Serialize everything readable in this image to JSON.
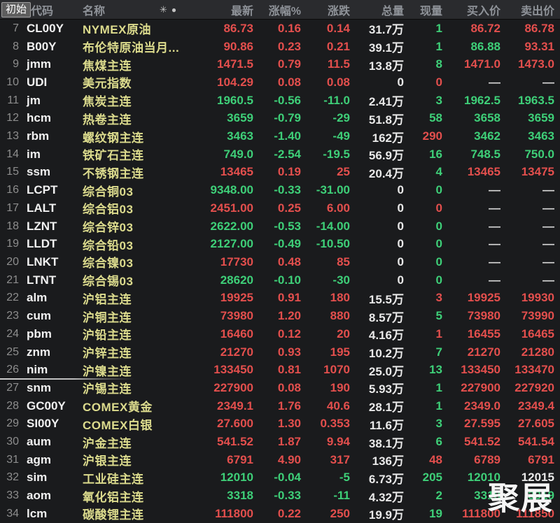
{
  "header": {
    "initial_label": "初始",
    "columns": {
      "code": "代码",
      "name": "名称",
      "last": "最新",
      "pct": "涨幅%",
      "chg": "涨跌",
      "vol": "总量",
      "cur": "现量",
      "bid": "买入价",
      "ask": "卖出价"
    },
    "icons": {
      "asterisk": "✳",
      "dot": "●"
    }
  },
  "colors": {
    "up": "#e34f4d",
    "down": "#3ecf78",
    "neutral": "#e9e9e9",
    "dash": "#d9d9d9",
    "name": "#dcdb8d"
  },
  "watermark": "聚展",
  "rows": [
    {
      "n": "7",
      "code": "CL00Y",
      "name": "NYMEX原油",
      "last": "86.73",
      "pct": "0.16",
      "chg": "0.14",
      "vol": "31.7万",
      "cur": "1",
      "bid": "86.72",
      "ask": "86.78",
      "t": "r",
      "cc": "g",
      "bc": "r",
      "ac": "r"
    },
    {
      "n": "8",
      "code": "B00Y",
      "name": "布伦特原油当月...",
      "last": "90.86",
      "pct": "0.23",
      "chg": "0.21",
      "vol": "39.1万",
      "cur": "1",
      "bid": "86.88",
      "ask": "93.31",
      "t": "r",
      "cc": "g",
      "bc": "g",
      "ac": "r"
    },
    {
      "n": "9",
      "code": "jmm",
      "name": "焦煤主连",
      "last": "1471.5",
      "pct": "0.79",
      "chg": "11.5",
      "vol": "13.8万",
      "cur": "8",
      "bid": "1471.0",
      "ask": "1473.0",
      "t": "r",
      "cc": "g",
      "bc": "r",
      "ac": "r"
    },
    {
      "n": "10",
      "code": "UDI",
      "name": "美元指数",
      "last": "104.29",
      "pct": "0.08",
      "chg": "0.08",
      "vol": "0",
      "cur": "0",
      "bid": "—",
      "ask": "—",
      "t": "r",
      "cc": "r",
      "bc": "d",
      "ac": "d"
    },
    {
      "n": "11",
      "code": "jm",
      "name": "焦炭主连",
      "last": "1960.5",
      "pct": "-0.56",
      "chg": "-11.0",
      "vol": "2.41万",
      "cur": "3",
      "bid": "1962.5",
      "ask": "1963.5",
      "t": "g",
      "cc": "g",
      "bc": "g",
      "ac": "g"
    },
    {
      "n": "12",
      "code": "hcm",
      "name": "热卷主连",
      "last": "3659",
      "pct": "-0.79",
      "chg": "-29",
      "vol": "51.8万",
      "cur": "58",
      "bid": "3658",
      "ask": "3659",
      "t": "g",
      "cc": "g",
      "bc": "g",
      "ac": "g"
    },
    {
      "n": "13",
      "code": "rbm",
      "name": "螺纹钢主连",
      "last": "3463",
      "pct": "-1.40",
      "chg": "-49",
      "vol": "162万",
      "cur": "290",
      "bid": "3462",
      "ask": "3463",
      "t": "g",
      "cc": "r",
      "bc": "g",
      "ac": "g"
    },
    {
      "n": "14",
      "code": "im",
      "name": "铁矿石主连",
      "last": "749.0",
      "pct": "-2.54",
      "chg": "-19.5",
      "vol": "56.9万",
      "cur": "16",
      "bid": "748.5",
      "ask": "750.0",
      "t": "g",
      "cc": "g",
      "bc": "g",
      "ac": "g"
    },
    {
      "n": "15",
      "code": "ssm",
      "name": "不锈钢主连",
      "last": "13465",
      "pct": "0.19",
      "chg": "25",
      "vol": "20.4万",
      "cur": "4",
      "bid": "13465",
      "ask": "13475",
      "t": "r",
      "cc": "g",
      "bc": "r",
      "ac": "r"
    },
    {
      "n": "16",
      "code": "LCPT",
      "name": "综合铜03",
      "last": "9348.00",
      "pct": "-0.33",
      "chg": "-31.00",
      "vol": "0",
      "cur": "0",
      "bid": "—",
      "ask": "—",
      "t": "g",
      "cc": "g",
      "bc": "d",
      "ac": "d"
    },
    {
      "n": "17",
      "code": "LALT",
      "name": "综合铝03",
      "last": "2451.00",
      "pct": "0.25",
      "chg": "6.00",
      "vol": "0",
      "cur": "0",
      "bid": "—",
      "ask": "—",
      "t": "r",
      "cc": "r",
      "bc": "d",
      "ac": "d"
    },
    {
      "n": "18",
      "code": "LZNT",
      "name": "综合锌03",
      "last": "2622.00",
      "pct": "-0.53",
      "chg": "-14.00",
      "vol": "0",
      "cur": "0",
      "bid": "—",
      "ask": "—",
      "t": "g",
      "cc": "g",
      "bc": "d",
      "ac": "d"
    },
    {
      "n": "19",
      "code": "LLDT",
      "name": "综合铅03",
      "last": "2127.00",
      "pct": "-0.49",
      "chg": "-10.50",
      "vol": "0",
      "cur": "0",
      "bid": "—",
      "ask": "—",
      "t": "g",
      "cc": "g",
      "bc": "d",
      "ac": "d"
    },
    {
      "n": "20",
      "code": "LNKT",
      "name": "综合镍03",
      "last": "17730",
      "pct": "0.48",
      "chg": "85",
      "vol": "0",
      "cur": "0",
      "bid": "—",
      "ask": "—",
      "t": "r",
      "cc": "g",
      "bc": "d",
      "ac": "d"
    },
    {
      "n": "21",
      "code": "LTNT",
      "name": "综合锡03",
      "last": "28620",
      "pct": "-0.10",
      "chg": "-30",
      "vol": "0",
      "cur": "0",
      "bid": "—",
      "ask": "—",
      "t": "g",
      "cc": "g",
      "bc": "d",
      "ac": "d"
    },
    {
      "n": "22",
      "code": "alm",
      "name": "沪铝主连",
      "last": "19925",
      "pct": "0.91",
      "chg": "180",
      "vol": "15.5万",
      "cur": "3",
      "bid": "19925",
      "ask": "19930",
      "t": "r",
      "cc": "r",
      "bc": "r",
      "ac": "r"
    },
    {
      "n": "23",
      "code": "cum",
      "name": "沪铜主连",
      "last": "73980",
      "pct": "1.20",
      "chg": "880",
      "vol": "8.57万",
      "cur": "5",
      "bid": "73980",
      "ask": "73990",
      "t": "r",
      "cc": "g",
      "bc": "r",
      "ac": "r"
    },
    {
      "n": "24",
      "code": "pbm",
      "name": "沪铅主连",
      "last": "16460",
      "pct": "0.12",
      "chg": "20",
      "vol": "4.16万",
      "cur": "1",
      "bid": "16455",
      "ask": "16465",
      "t": "r",
      "cc": "r",
      "bc": "r",
      "ac": "r"
    },
    {
      "n": "25",
      "code": "znm",
      "name": "沪锌主连",
      "last": "21270",
      "pct": "0.93",
      "chg": "195",
      "vol": "10.2万",
      "cur": "7",
      "bid": "21270",
      "ask": "21280",
      "t": "r",
      "cc": "g",
      "bc": "r",
      "ac": "r"
    },
    {
      "n": "26",
      "code": "nim",
      "name": "沪镍主连",
      "last": "133450",
      "pct": "0.81",
      "chg": "1070",
      "vol": "25.0万",
      "cur": "13",
      "bid": "133450",
      "ask": "133470",
      "t": "r",
      "cc": "g",
      "bc": "r",
      "ac": "r"
    },
    {
      "n": "27",
      "code": "snm",
      "name": "沪锡主连",
      "last": "227900",
      "pct": "0.08",
      "chg": "190",
      "vol": "5.93万",
      "cur": "1",
      "bid": "227900",
      "ask": "227920",
      "t": "r",
      "cc": "g",
      "bc": "r",
      "ac": "r"
    },
    {
      "n": "28",
      "code": "GC00Y",
      "name": "COMEX黄金",
      "last": "2349.1",
      "pct": "1.76",
      "chg": "40.6",
      "vol": "28.1万",
      "cur": "1",
      "bid": "2349.0",
      "ask": "2349.4",
      "t": "r",
      "cc": "g",
      "bc": "r",
      "ac": "r"
    },
    {
      "n": "29",
      "code": "SI00Y",
      "name": "COMEX白银",
      "last": "27.600",
      "pct": "1.30",
      "chg": "0.353",
      "vol": "11.6万",
      "cur": "3",
      "bid": "27.595",
      "ask": "27.605",
      "t": "r",
      "cc": "g",
      "bc": "r",
      "ac": "r"
    },
    {
      "n": "30",
      "code": "aum",
      "name": "沪金主连",
      "last": "541.52",
      "pct": "1.87",
      "chg": "9.94",
      "vol": "38.1万",
      "cur": "6",
      "bid": "541.52",
      "ask": "541.54",
      "t": "r",
      "cc": "g",
      "bc": "r",
      "ac": "r"
    },
    {
      "n": "31",
      "code": "agm",
      "name": "沪银主连",
      "last": "6791",
      "pct": "4.90",
      "chg": "317",
      "vol": "136万",
      "cur": "48",
      "bid": "6789",
      "ask": "6791",
      "t": "r",
      "cc": "r",
      "bc": "r",
      "ac": "r"
    },
    {
      "n": "32",
      "code": "sim",
      "name": "工业硅主连",
      "last": "12010",
      "pct": "-0.04",
      "chg": "-5",
      "vol": "6.73万",
      "cur": "205",
      "bid": "12010",
      "ask": "12015",
      "t": "g",
      "cc": "g",
      "bc": "g",
      "ac": "w"
    },
    {
      "n": "33",
      "code": "aom",
      "name": "氧化铝主连",
      "last": "3318",
      "pct": "-0.33",
      "chg": "-11",
      "vol": "4.32万",
      "cur": "2",
      "bid": "3318",
      "ask": "3319",
      "t": "g",
      "cc": "g",
      "bc": "g",
      "ac": "g"
    },
    {
      "n": "34",
      "code": "lcm",
      "name": "碳酸锂主连",
      "last": "111800",
      "pct": "0.22",
      "chg": "250",
      "vol": "19.9万",
      "cur": "19",
      "bid": "111800",
      "ask": "111850",
      "t": "r",
      "cc": "g",
      "bc": "r",
      "ac": "r"
    }
  ]
}
